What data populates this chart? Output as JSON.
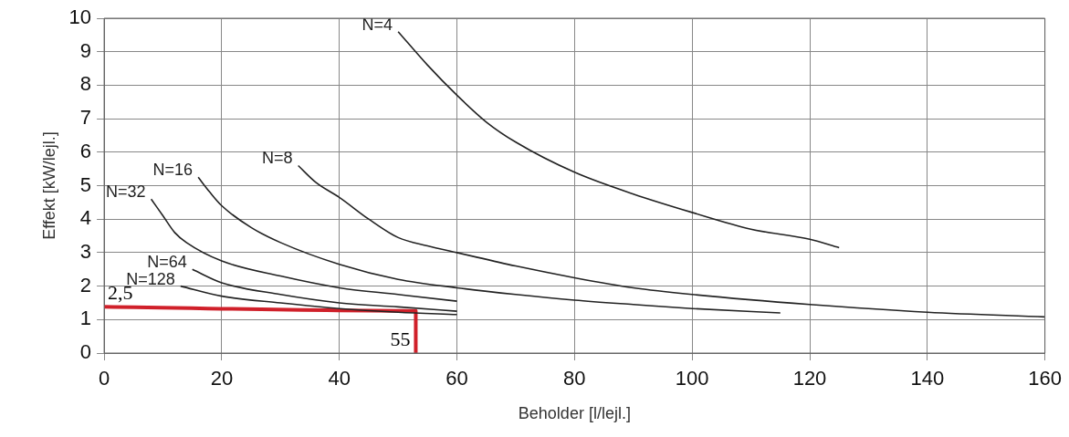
{
  "chart_data": {
    "type": "line",
    "xlabel": "Beholder [l/lejl.]",
    "ylabel": "Effekt [kW/lejl.]",
    "xlim": [
      0,
      160
    ],
    "xticks": [
      0,
      20,
      40,
      60,
      80,
      100,
      120,
      140,
      160
    ],
    "ylim": [
      0,
      10
    ],
    "yticks": [
      0,
      1,
      2,
      3,
      4,
      5,
      6,
      7,
      8,
      9,
      10
    ],
    "grid": true,
    "legend": false,
    "marker": "none",
    "line_style": "solid",
    "series": [
      {
        "name": "N=4",
        "color": "#222222",
        "x": [
          50,
          55,
          60,
          65,
          70,
          80,
          90,
          100,
          110,
          120,
          125
        ],
        "values": [
          9.6,
          8.6,
          7.7,
          6.9,
          6.3,
          5.4,
          4.75,
          4.2,
          3.7,
          3.4,
          3.15
        ]
      },
      {
        "name": "N=8",
        "color": "#222222",
        "x": [
          33,
          36,
          40,
          45,
          50,
          55,
          60,
          70,
          80,
          90,
          100,
          120,
          140,
          160
        ],
        "values": [
          5.6,
          5.1,
          4.65,
          4.0,
          3.45,
          3.2,
          3.0,
          2.6,
          2.25,
          1.95,
          1.75,
          1.45,
          1.22,
          1.08
        ]
      },
      {
        "name": "N=16",
        "color": "#222222",
        "x": [
          16,
          18,
          20,
          25,
          30,
          40,
          50,
          60,
          70,
          80,
          90,
          100,
          115
        ],
        "values": [
          5.25,
          4.8,
          4.4,
          3.75,
          3.3,
          2.65,
          2.2,
          1.95,
          1.75,
          1.58,
          1.45,
          1.33,
          1.2
        ]
      },
      {
        "name": "N=32",
        "color": "#222222",
        "x": [
          8,
          10,
          12,
          14,
          20,
          30,
          40,
          50,
          60
        ],
        "values": [
          4.6,
          4.1,
          3.6,
          3.3,
          2.75,
          2.3,
          1.95,
          1.75,
          1.55
        ]
      },
      {
        "name": "N=64",
        "color": "#222222",
        "x": [
          15,
          20,
          30,
          40,
          50,
          60
        ],
        "values": [
          2.5,
          2.1,
          1.75,
          1.5,
          1.38,
          1.25
        ]
      },
      {
        "name": "N=128",
        "color": "#222222",
        "x": [
          13,
          20,
          30,
          40,
          50,
          60
        ],
        "values": [
          2.0,
          1.7,
          1.5,
          1.33,
          1.22,
          1.15
        ]
      },
      {
        "color": "#d0202a",
        "x": [
          0,
          53,
          53
        ],
        "values": [
          1.38,
          1.26,
          0
        ]
      }
    ],
    "annotations": [
      {
        "text": "2,5",
        "x": 0,
        "y": 1.38
      },
      {
        "text": "55",
        "x": 53,
        "y": 0
      }
    ]
  }
}
